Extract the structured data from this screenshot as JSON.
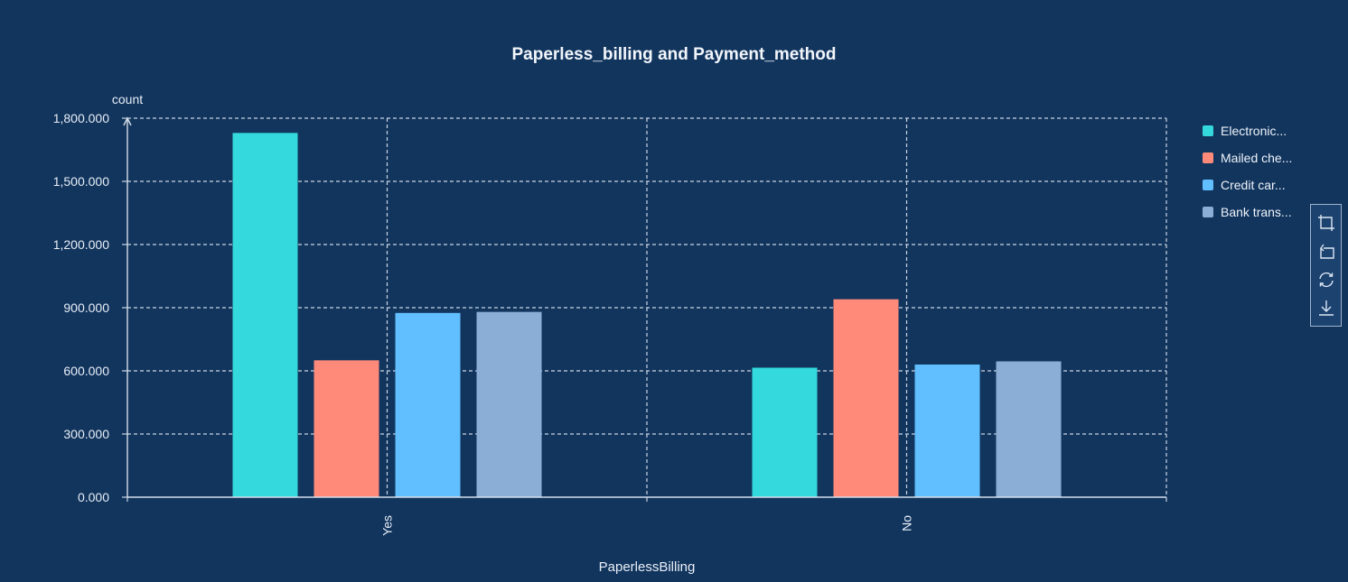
{
  "chart_data": {
    "type": "bar",
    "title": "Paperless_billing and Payment_method",
    "xlabel": "PaperlessBilling",
    "ylabel": "count",
    "categories": [
      "Yes",
      "No"
    ],
    "ylim": [
      0,
      1800
    ],
    "yticks": [
      "0.000",
      "300.000",
      "600.000",
      "900.000",
      "1,200.000",
      "1,500.000",
      "1,800.000"
    ],
    "grid": true,
    "legend_position": "right",
    "series": [
      {
        "name": "Electronic...",
        "color": "#33d9dc",
        "values": [
          1730,
          615
        ]
      },
      {
        "name": "Mailed che...",
        "color": "#ff8a7a",
        "values": [
          650,
          940
        ]
      },
      {
        "name": "Credit car...",
        "color": "#61bfff",
        "values": [
          875,
          630
        ]
      },
      {
        "name": "Bank trans...",
        "color": "#8baed6",
        "values": [
          880,
          645
        ]
      }
    ]
  },
  "toolbox": {
    "icons": [
      "zoom-icon",
      "zoom-reset-icon",
      "restore-icon",
      "download-icon"
    ]
  }
}
